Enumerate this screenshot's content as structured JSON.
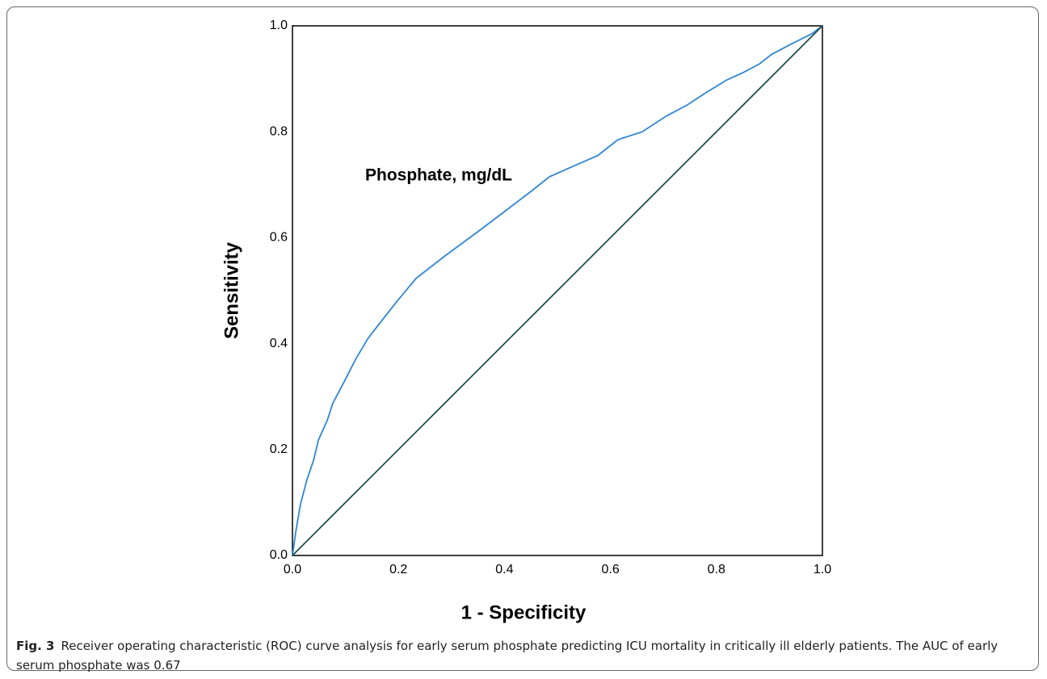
{
  "chart_data": {
    "type": "line",
    "xlabel": "1 - Specificity",
    "ylabel": "Sensitivity",
    "xlim": [
      0,
      1
    ],
    "ylim": [
      0,
      1
    ],
    "xticks": [
      {
        "value": 0,
        "label": "0.0"
      },
      0.2,
      0.4,
      0.6,
      0.8,
      {
        "value": 1,
        "label": "1.0"
      }
    ],
    "yticks": [
      {
        "value": 0,
        "label": "0.0"
      },
      0.2,
      0.4,
      0.6,
      0.8,
      {
        "value": 1,
        "label": "1.0"
      }
    ],
    "grid": false,
    "series": [
      {
        "name": "Phosphate, mg/dL",
        "color": "#2f86d6",
        "x": [
          0,
          0.006,
          0.015,
          0.027,
          0.04,
          0.049,
          0.066,
          0.076,
          0.096,
          0.119,
          0.142,
          0.165,
          0.195,
          0.233,
          0.287,
          0.348,
          0.401,
          0.447,
          0.485,
          0.53,
          0.576,
          0.614,
          0.66,
          0.706,
          0.744,
          0.782,
          0.82,
          0.851,
          0.881,
          0.904,
          0.94,
          0.98,
          1
        ],
        "values": [
          0,
          0.043,
          0.096,
          0.142,
          0.18,
          0.218,
          0.256,
          0.287,
          0.325,
          0.37,
          0.409,
          0.439,
          0.477,
          0.523,
          0.565,
          0.61,
          0.65,
          0.685,
          0.715,
          0.735,
          0.755,
          0.785,
          0.8,
          0.83,
          0.85,
          0.875,
          0.898,
          0.912,
          0.928,
          0.946,
          0.965,
          0.985,
          1
        ]
      },
      {
        "color": "#1d4f4b",
        "x": [
          0,
          1
        ],
        "values": [
          0,
          1
        ]
      }
    ]
  },
  "caption": {
    "label": "Fig. 3",
    "text": "Receiver operating characteristic (ROC) curve analysis for early serum phosphate predicting ICU mortality in critically ill elderly patients. The AUC of early serum phosphate was 0.67"
  }
}
